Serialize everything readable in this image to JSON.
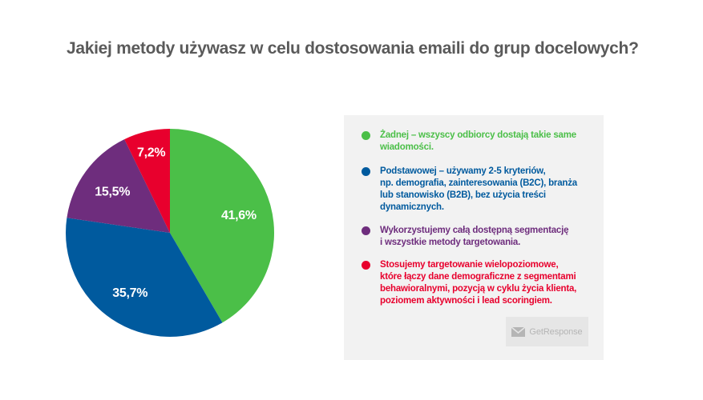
{
  "chart_data": {
    "type": "pie",
    "title": "Jakiej metody używasz w celu dostosowania emaili do grup docelowych?",
    "slices": [
      {
        "label": "41,6%",
        "value": 41.6,
        "color": "#4bbf48",
        "legend": "Żadnej – wszyscy odbiorcy dostają takie same\nwiadomości."
      },
      {
        "label": "35,7%",
        "value": 35.7,
        "color": "#005a9e",
        "legend": "Podstawowej – używamy 2-5 kryteriów,\nnp. demografia, zainteresowania (B2C), branża\nlub stanowisko (B2B), bez użycia treści\ndynamicznych."
      },
      {
        "label": "15,5%",
        "value": 15.5,
        "color": "#6e2d7d",
        "legend": "Wykorzystujemy całą dostępną segmentację\ni wszystkie metody targetowania."
      },
      {
        "label": "7,2%",
        "value": 7.2,
        "color": "#e8002d",
        "legend": "Stosujemy targetowanie wielopoziomowe,\nktóre łączy dane demograficzne z segmentami\nbehawioralnymi, pozycją w cyklu życia klienta,\npoziomem aktywności i lead scoringiem."
      }
    ],
    "legend_placement": "right"
  },
  "branding": {
    "logo_text": "GetResponse",
    "logo_icon": "envelope-icon"
  }
}
